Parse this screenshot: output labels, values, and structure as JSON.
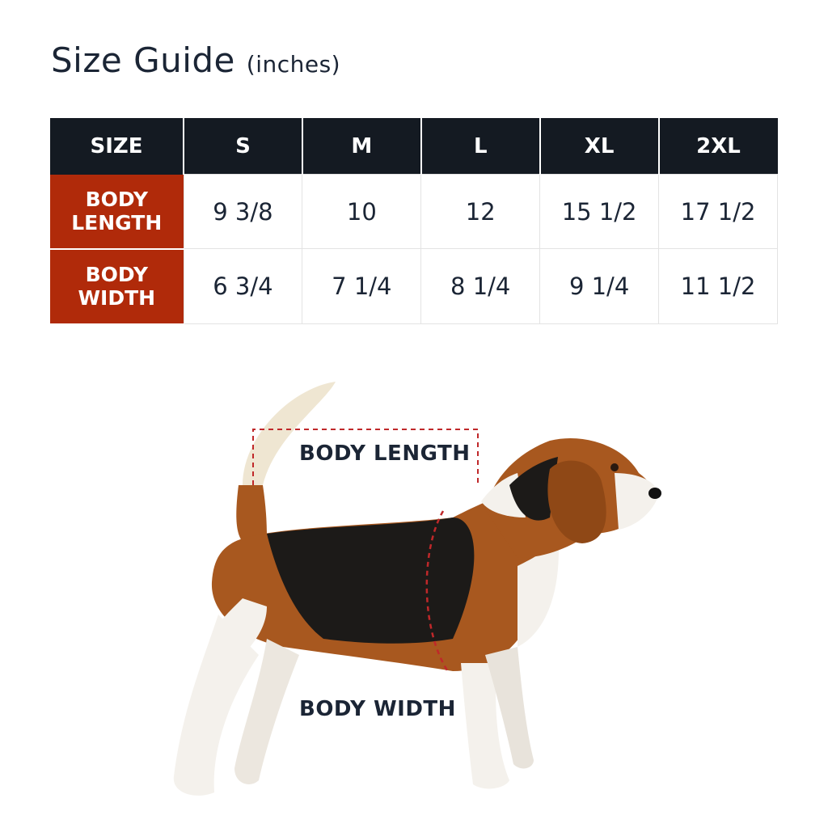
{
  "title": {
    "main": "Size Guide",
    "unit": "(inches)"
  },
  "table": {
    "headers": [
      "SIZE",
      "S",
      "M",
      "L",
      "XL",
      "2XL"
    ],
    "rows": [
      {
        "label_line1": "BODY",
        "label_line2": "LENGTH",
        "values": [
          "9 3/8",
          "10",
          "12",
          "15 1/2",
          "17 1/2"
        ]
      },
      {
        "label_line1": "BODY",
        "label_line2": "WIDTH",
        "values": [
          "6 3/4",
          "7 1/4",
          "8 1/4",
          "9 1/4",
          "11 1/2"
        ]
      }
    ]
  },
  "diagram": {
    "length_label": "BODY LENGTH",
    "width_label": "BODY WIDTH"
  },
  "colors": {
    "header_bg": "#141a22",
    "label_bg": "#b02a0a",
    "measure_line": "#c0282a"
  }
}
